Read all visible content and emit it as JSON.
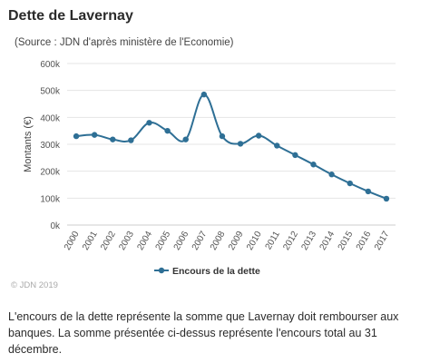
{
  "header": {
    "title": "Dette de Lavernay",
    "source": "(Source : JDN d'après ministère de l'Economie)"
  },
  "colors": {
    "line": "#2e6f95",
    "grid": "#e5e5e5",
    "axis_text": "#555555"
  },
  "chart_data": {
    "type": "line",
    "ylabel": "Montants (€)",
    "ylim": [
      0,
      600000
    ],
    "y_ticks": [
      {
        "value": 0,
        "label": "0k"
      },
      {
        "value": 100000,
        "label": "100k"
      },
      {
        "value": 200000,
        "label": "200k"
      },
      {
        "value": 300000,
        "label": "300k"
      },
      {
        "value": 400000,
        "label": "400k"
      },
      {
        "value": 500000,
        "label": "500k"
      },
      {
        "value": 600000,
        "label": "600k"
      }
    ],
    "categories": [
      "2000",
      "2001",
      "2002",
      "2003",
      "2004",
      "2005",
      "2006",
      "2007",
      "2008",
      "2009",
      "2010",
      "2011",
      "2012",
      "2013",
      "2014",
      "2015",
      "2016",
      "2017"
    ],
    "series": [
      {
        "name": "Encours de la dette",
        "values": [
          330000,
          335000,
          318000,
          315000,
          380000,
          350000,
          318000,
          485000,
          330000,
          302000,
          332000,
          295000,
          260000,
          225000,
          188000,
          155000,
          125000,
          98000
        ]
      }
    ],
    "grid": true,
    "legend_position": "bottom"
  },
  "footer": {
    "credit": "© JDN 2019",
    "description": "L'encours de la dette représente la somme que Lavernay doit rembourser aux banques. La somme présentée ci-dessus représente l'encours total au 31 décembre."
  }
}
